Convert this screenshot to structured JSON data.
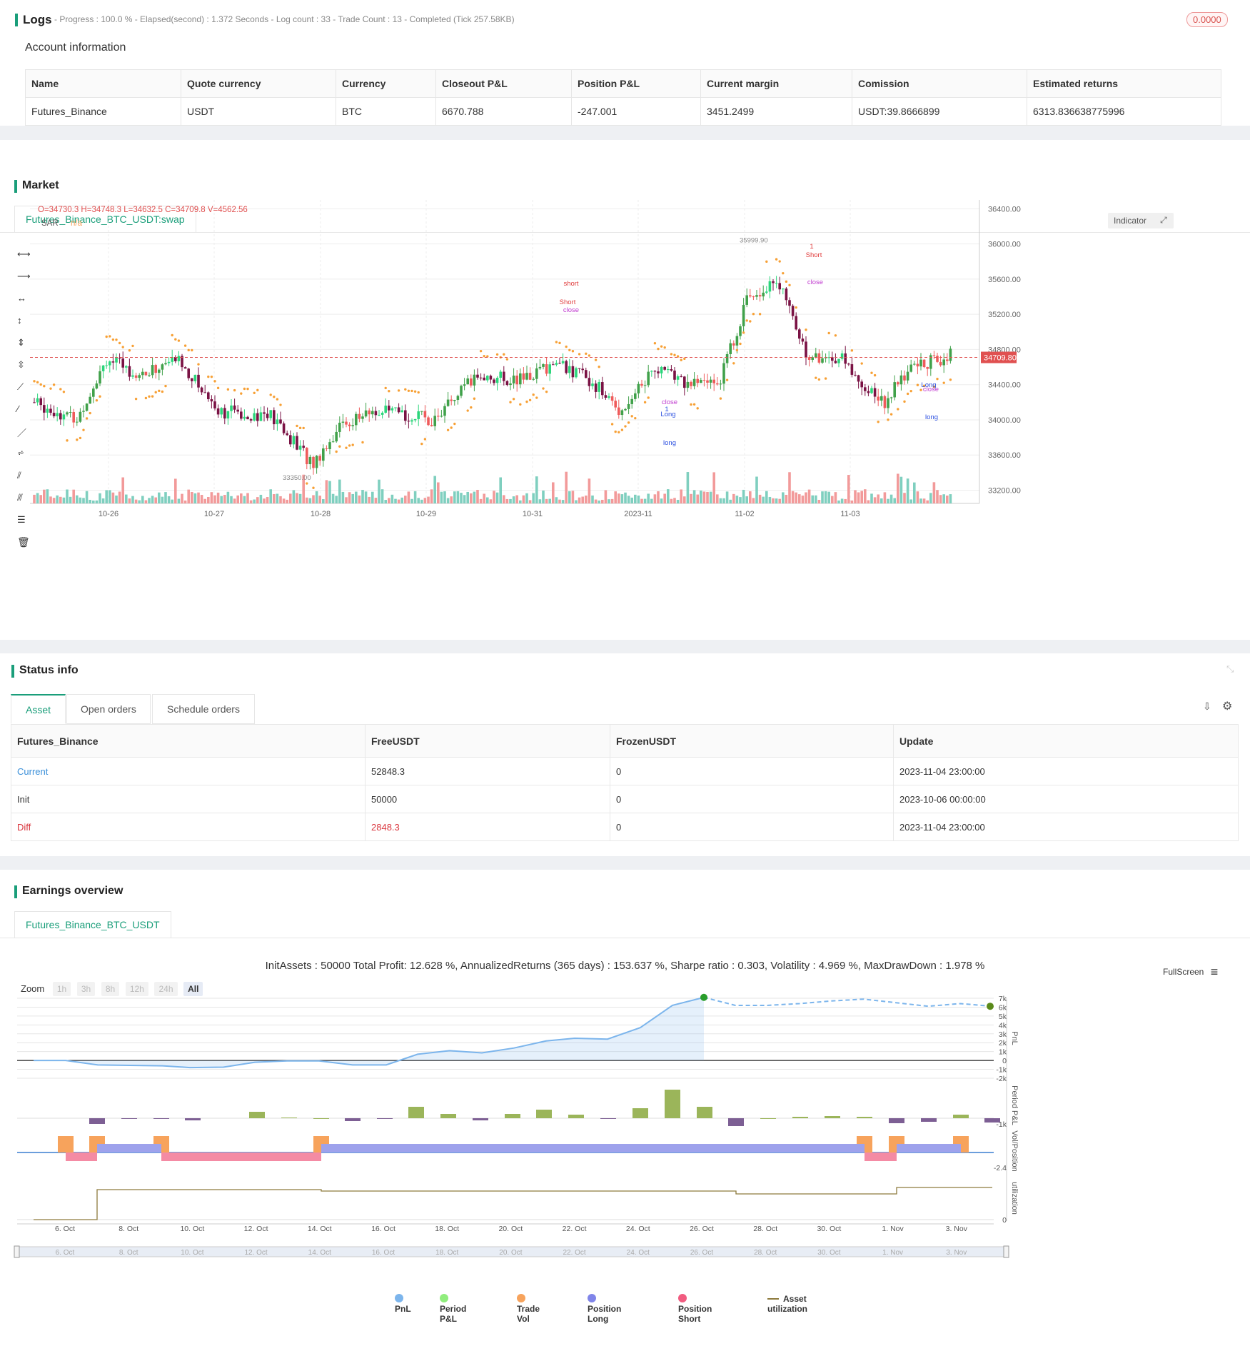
{
  "logs": {
    "title": "Logs",
    "progress": "- Progress : 100.0 % - Elapsed(second) : 1.372  Seconds - Log count : 33 - Trade Count : 13 - Completed (Tick 257.58KB)",
    "badge": "0.0000",
    "account_title": "Account information",
    "account_headers": [
      "Name",
      "Quote currency",
      "Currency",
      "Closeout P&L",
      "Position P&L",
      "Current margin",
      "Comission",
      "Estimated returns"
    ],
    "account_row": [
      "Futures_Binance",
      "USDT",
      "BTC",
      "6670.788",
      "-247.001",
      "3451.2499",
      "USDT:39.8666899",
      "6313.836638775996"
    ]
  },
  "market": {
    "title": "Market",
    "tab": "Futures_Binance_BTC_USDT:swap",
    "ohlc": "O=34730.3 H=34748.3 L=34632.5 C=34709.8 V=4562.56",
    "sar_label": "SAR",
    "sar_value": "n/a",
    "indicator_btn": "Indicator",
    "current_price": "34709.80",
    "high_label": "35999.90",
    "low_label": "33350.00",
    "y_ticks": [
      "36400.00",
      "36000.00",
      "35600.00",
      "35200.00",
      "34800.00",
      "34400.00",
      "34000.00",
      "33600.00",
      "33200.00"
    ],
    "x_ticks": [
      "10-26",
      "10-27",
      "10-28",
      "10-29",
      "10-31",
      "2023-11",
      "11-02",
      "11-03"
    ],
    "signals": [
      {
        "label": "short",
        "type": "short"
      },
      {
        "label": "Short",
        "type": "short"
      },
      {
        "label": "close",
        "type": "close"
      },
      {
        "label": "1",
        "type": "short"
      },
      {
        "label": "Short",
        "type": "short"
      },
      {
        "label": "close",
        "type": "close"
      },
      {
        "label": "Long",
        "type": "long"
      },
      {
        "label": "close",
        "type": "close"
      },
      {
        "label": "1",
        "type": "long"
      },
      {
        "label": "long",
        "type": "long"
      },
      {
        "label": "Long",
        "type": "long"
      },
      {
        "label": "close",
        "type": "close"
      },
      {
        "label": "long",
        "type": "long"
      }
    ]
  },
  "status": {
    "title": "Status info",
    "tabs": [
      "Asset",
      "Open orders",
      "Schedule orders"
    ],
    "headers": [
      "Futures_Binance",
      "FreeUSDT",
      "FrozenUSDT",
      "Update"
    ],
    "rows": [
      [
        "Current",
        "52848.3",
        "0",
        "2023-11-04 23:00:00"
      ],
      [
        "Init",
        "50000",
        "0",
        "2023-10-06 00:00:00"
      ],
      [
        "Diff",
        "2848.3",
        "0",
        "2023-11-04 23:00:00"
      ]
    ]
  },
  "earnings": {
    "title": "Earnings overview",
    "tab": "Futures_Binance_BTC_USDT",
    "summary": "InitAssets : 50000 Total Profit: 12.628 %, AnnualizedReturns (365 days) : 153.637 %, Sharpe ratio : 0.303, Volatility : 4.969 %, MaxDrawDown : 1.978 %",
    "fullscreen": "FullScreen",
    "zoom_label": "Zoom",
    "zoom_buttons": [
      "1h",
      "3h",
      "8h",
      "12h",
      "24h",
      "All"
    ],
    "pnl_ticks": [
      "7k",
      "6k",
      "5k",
      "4k",
      "3k",
      "2k",
      "1k",
      "0",
      "-1k",
      "-2k"
    ],
    "period_tick": "-1k",
    "vol_tick": "-2.4",
    "util_tick": "0",
    "axis_labels": [
      "PnL",
      "Period P&L",
      "Vol/Position",
      "utilization"
    ],
    "x_ticks": [
      "6. Oct",
      "8. Oct",
      "10. Oct",
      "12. Oct",
      "14. Oct",
      "16. Oct",
      "18. Oct",
      "20. Oct",
      "22. Oct",
      "24. Oct",
      "26. Oct",
      "28. Oct",
      "30. Oct",
      "1. Nov",
      "3. Nov"
    ],
    "legend": [
      {
        "name": "PnL",
        "color": "#7cb5ec"
      },
      {
        "name": "Period P&L",
        "color": "#90ed7d"
      },
      {
        "name": "Trade Vol",
        "color": "#f7a35c"
      },
      {
        "name": "Position Long",
        "color": "#8085e9"
      },
      {
        "name": "Position Short",
        "color": "#f15c80"
      },
      {
        "name": "Asset utilization",
        "color": "#8d7a3c"
      }
    ],
    "colors": {
      "accent": "#1a9e7a",
      "pnl_line": "#7cb5ec",
      "period": "#9bb55a",
      "period_neg": "#7d5f94"
    }
  }
}
